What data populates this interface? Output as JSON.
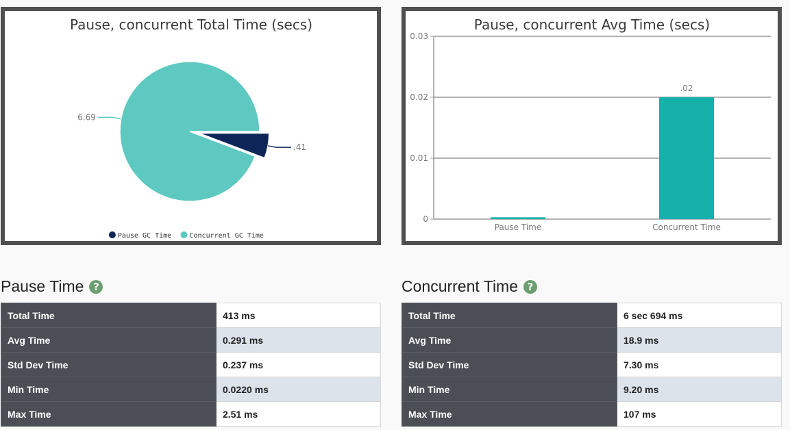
{
  "chart_data": [
    {
      "type": "pie",
      "title": "Pause, concurrent Total Time (secs)",
      "categories": [
        "Pause GC Time",
        "Concurrent GC Time"
      ],
      "values": [
        0.41,
        6.69
      ],
      "data_labels": [
        ".41",
        "6.69"
      ],
      "legend": [
        "Pause GC Time",
        "Concurrent GC Time"
      ],
      "legend_position": "bottom",
      "colors": [
        "#0e2657",
        "#5dc9c1"
      ]
    },
    {
      "type": "bar",
      "title": "Pause, concurrent Avg Time (secs)",
      "categories": [
        "Pause Time",
        "Concurrent Time"
      ],
      "values": [
        0.0003,
        0.02
      ],
      "data_labels": [
        "",
        ".02"
      ],
      "ylim": [
        0,
        0.03
      ],
      "yticks": [
        "0",
        "0.01",
        "0.02",
        "0.03"
      ],
      "grid": true,
      "colors": [
        "#16b1ab"
      ]
    }
  ],
  "pause": {
    "title": "Pause Time",
    "help": "?",
    "rows": [
      {
        "label": "Total Time",
        "value": "413 ms"
      },
      {
        "label": "Avg Time",
        "value": "0.291 ms"
      },
      {
        "label": "Std Dev Time",
        "value": "0.237 ms"
      },
      {
        "label": "Min Time",
        "value": "0.0220 ms"
      },
      {
        "label": "Max Time",
        "value": "2.51 ms"
      }
    ]
  },
  "concurrent": {
    "title": "Concurrent Time",
    "help": "?",
    "rows": [
      {
        "label": "Total Time",
        "value": "6 sec 694 ms"
      },
      {
        "label": "Avg Time",
        "value": "18.9 ms"
      },
      {
        "label": "Std Dev Time",
        "value": "7.30 ms"
      },
      {
        "label": "Min Time",
        "value": "9.20 ms"
      },
      {
        "label": "Max Time",
        "value": "107 ms"
      }
    ]
  }
}
